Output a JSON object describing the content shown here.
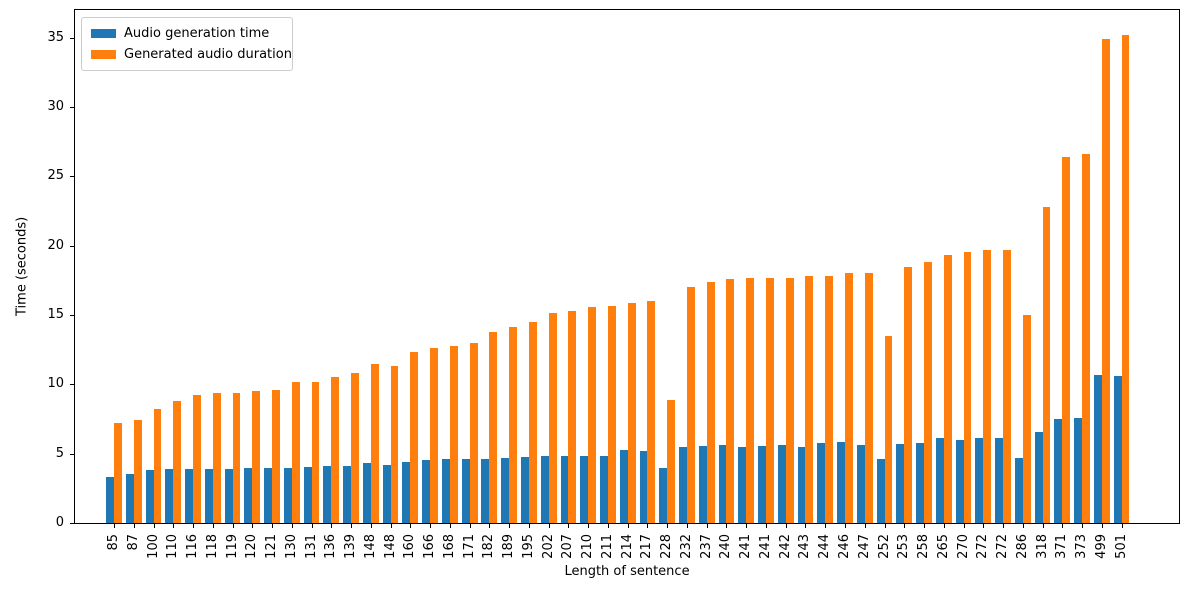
{
  "chart_data": {
    "type": "bar",
    "title": "",
    "xlabel": "Length of sentence",
    "ylabel": "Time (seconds)",
    "categories": [
      "85",
      "87",
      "100",
      "110",
      "116",
      "118",
      "119",
      "120",
      "121",
      "130",
      "131",
      "136",
      "139",
      "148",
      "148",
      "160",
      "166",
      "168",
      "171",
      "182",
      "189",
      "195",
      "202",
      "207",
      "210",
      "211",
      "214",
      "217",
      "228",
      "232",
      "237",
      "240",
      "241",
      "241",
      "242",
      "243",
      "244",
      "246",
      "247",
      "252",
      "253",
      "258",
      "265",
      "270",
      "272",
      "272",
      "286",
      "318",
      "371",
      "373",
      "499",
      "501"
    ],
    "series": [
      {
        "name": "Audio generation time",
        "color": "#1f77b4",
        "values": [
          3.3,
          3.5,
          3.85,
          3.9,
          3.9,
          3.9,
          3.9,
          3.95,
          3.95,
          4.0,
          4.05,
          4.1,
          4.1,
          4.3,
          4.15,
          4.4,
          4.55,
          4.6,
          4.6,
          4.65,
          4.7,
          4.75,
          4.85,
          4.8,
          4.85,
          4.85,
          5.25,
          5.2,
          3.95,
          5.45,
          5.55,
          5.6,
          5.5,
          5.55,
          5.6,
          5.5,
          5.75,
          5.85,
          5.6,
          4.6,
          5.7,
          5.8,
          6.1,
          6.0,
          6.1,
          6.1,
          4.7,
          6.6,
          7.5,
          7.6,
          10.65,
          10.6
        ]
      },
      {
        "name": "Generated audio duration",
        "color": "#ff7f0e",
        "values": [
          7.2,
          7.4,
          8.2,
          8.8,
          9.2,
          9.35,
          9.4,
          9.55,
          9.6,
          10.2,
          10.2,
          10.55,
          10.85,
          11.45,
          11.35,
          12.3,
          12.65,
          12.75,
          13.0,
          13.8,
          14.15,
          14.5,
          15.15,
          15.3,
          15.55,
          15.65,
          15.85,
          16.0,
          8.9,
          17.05,
          17.4,
          17.6,
          17.7,
          17.65,
          17.7,
          17.8,
          17.85,
          18.0,
          18.0,
          13.5,
          18.5,
          18.85,
          19.3,
          19.55,
          19.7,
          19.7,
          15.0,
          22.8,
          26.4,
          26.6,
          34.9,
          35.2
        ]
      }
    ],
    "ylim": [
      0,
      37
    ],
    "yticks": [
      0,
      5,
      10,
      15,
      20,
      25,
      30,
      35
    ],
    "xtick_rotation": 90,
    "grid": false,
    "legend_position": "upper left"
  }
}
